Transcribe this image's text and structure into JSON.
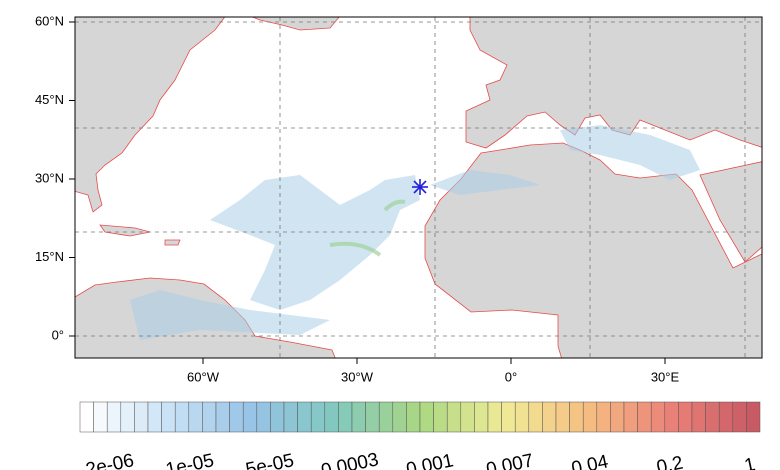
{
  "map": {
    "lat_labels": [
      "60°N",
      "45°N",
      "30°N",
      "15°N",
      "0°"
    ],
    "lon_labels": [
      "60°W",
      "30°W",
      "0°",
      "30°E"
    ]
  },
  "colorbar": {
    "labels": [
      "2e-06",
      "1e-05",
      "5e-05",
      "0.0003",
      "0.001",
      "0.007",
      "0.04",
      "0.2",
      "1"
    ]
  }
}
